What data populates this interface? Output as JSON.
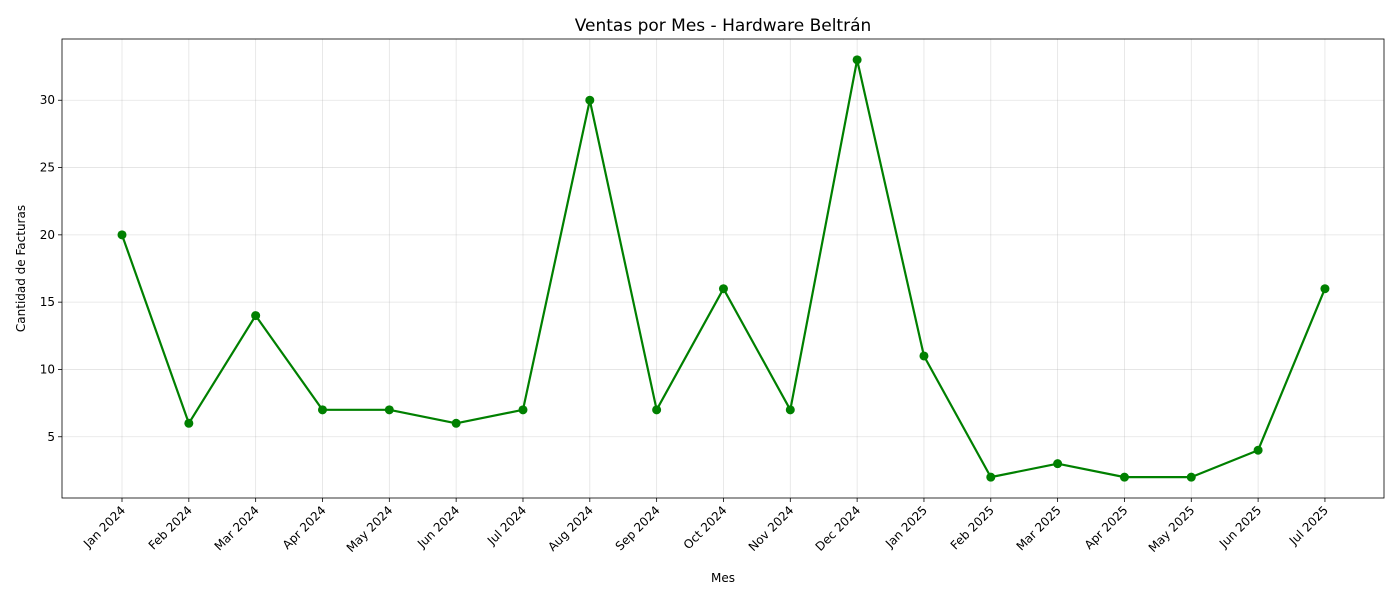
{
  "chart_data": {
    "type": "line",
    "title": "Ventas por Mes - Hardware Beltrán",
    "xlabel": "Mes",
    "ylabel": "Cantidad de Facturas",
    "categories": [
      "Jan 2024",
      "Feb 2024",
      "Mar 2024",
      "Apr 2024",
      "May 2024",
      "Jun 2024",
      "Jul 2024",
      "Aug 2024",
      "Sep 2024",
      "Oct 2024",
      "Nov 2024",
      "Dec 2024",
      "Jan 2025",
      "Feb 2025",
      "Mar 2025",
      "Apr 2025",
      "May 2025",
      "Jun 2025",
      "Jul 2025"
    ],
    "series": [
      {
        "values": [
          20,
          6,
          14,
          7,
          7,
          6,
          7,
          30,
          7,
          16,
          7,
          33,
          11,
          2,
          3,
          2,
          2,
          4,
          16
        ],
        "color": "#008000"
      }
    ],
    "yticks": [
      5,
      10,
      15,
      20,
      25,
      30
    ],
    "ylim": [
      0.45,
      34.55
    ],
    "grid": true,
    "marker": "circle"
  }
}
